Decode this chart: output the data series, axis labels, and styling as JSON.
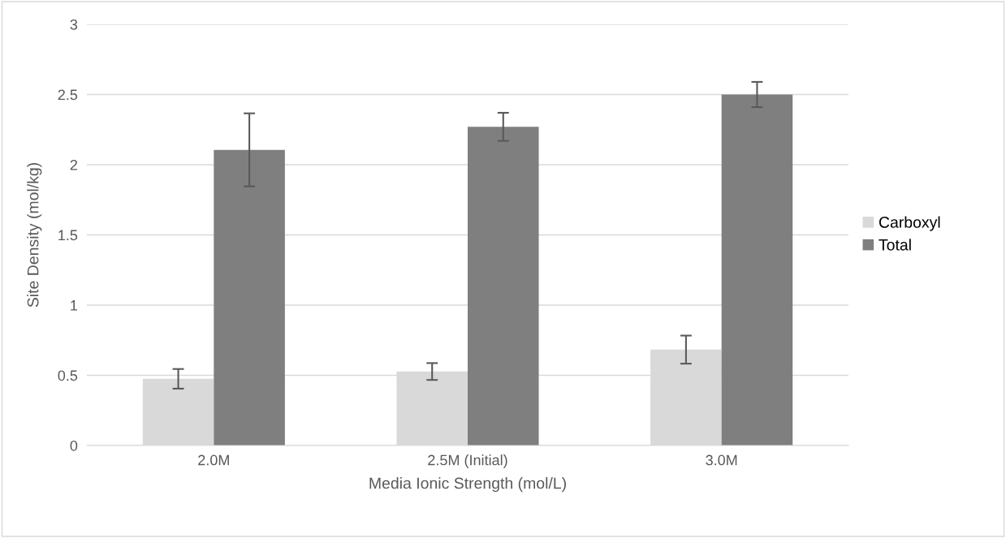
{
  "chart_data": {
    "type": "bar",
    "xlabel": "Media Ionic Strength (mol/L)",
    "ylabel": "Site Density (mol/kg)",
    "categories": [
      "2.0M",
      "2.5M (Initial)",
      "3.0M"
    ],
    "series": [
      {
        "name": "Carboxyl",
        "color": "#d9d9d9",
        "values": [
          0.475,
          0.527,
          0.683
        ],
        "errors": [
          0.07,
          0.06,
          0.1
        ]
      },
      {
        "name": "Total",
        "color": "#7f7f7f",
        "values": [
          2.106,
          2.27,
          2.5
        ],
        "errors": [
          0.26,
          0.1,
          0.09
        ]
      }
    ],
    "ylim": [
      0,
      3
    ],
    "yticks": [
      0,
      {
        "value": 0.5,
        "label": "0.5"
      },
      1,
      {
        "value": 1.5,
        "label": "1.5"
      },
      2,
      {
        "value": 2.5,
        "label": "2.5"
      },
      3
    ],
    "grid": "y",
    "legend": "right"
  }
}
